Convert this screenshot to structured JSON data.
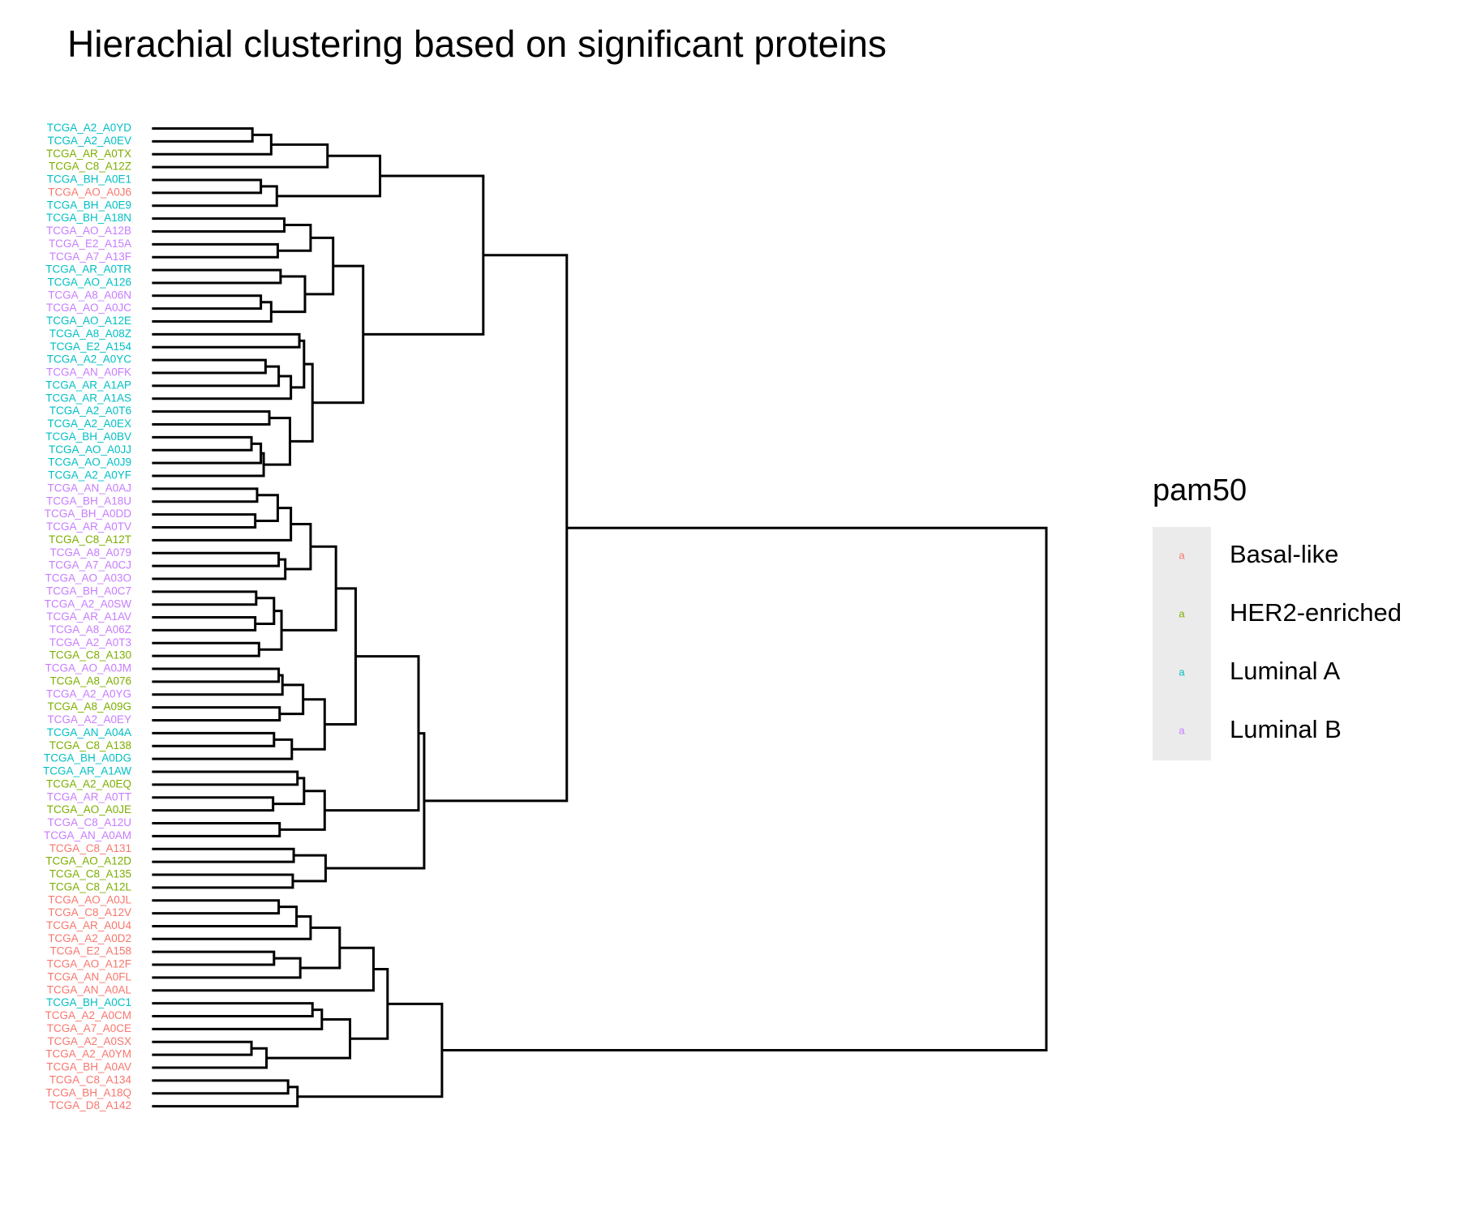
{
  "chart_data": {
    "type": "dendrogram",
    "title": "Hierachial clustering based on significant proteins",
    "labels": [
      "TCGA_A2_A0YD",
      "TCGA_A2_A0EV",
      "TCGA_AR_A0TX",
      "TCGA_C8_A12Z",
      "TCGA_BH_A0E1",
      "TCGA_AO_A0J6",
      "TCGA_BH_A0E9",
      "TCGA_BH_A18N",
      "TCGA_AO_A12B",
      "TCGA_E2_A15A",
      "TCGA_A7_A13F",
      "TCGA_AR_A0TR",
      "TCGA_AO_A126",
      "TCGA_A8_A06N",
      "TCGA_AO_A0JC",
      "TCGA_AO_A12E",
      "TCGA_A8_A08Z",
      "TCGA_E2_A154",
      "TCGA_A2_A0YC",
      "TCGA_AN_A0FK",
      "TCGA_AR_A1AP",
      "TCGA_AR_A1AS",
      "TCGA_A2_A0T6",
      "TCGA_A2_A0EX",
      "TCGA_BH_A0BV",
      "TCGA_AO_A0JJ",
      "TCGA_AO_A0J9",
      "TCGA_A2_A0YF",
      "TCGA_AN_A0AJ",
      "TCGA_BH_A18U",
      "TCGA_BH_A0DD",
      "TCGA_AR_A0TV",
      "TCGA_C8_A12T",
      "TCGA_A8_A079",
      "TCGA_A7_A0CJ",
      "TCGA_AO_A03O",
      "TCGA_BH_A0C7",
      "TCGA_A2_A0SW",
      "TCGA_AR_A1AV",
      "TCGA_A8_A06Z",
      "TCGA_A2_A0T3",
      "TCGA_C8_A130",
      "TCGA_AO_A0JM",
      "TCGA_A8_A076",
      "TCGA_A2_A0YG",
      "TCGA_A8_A09G",
      "TCGA_A2_A0EY",
      "TCGA_AN_A04A",
      "TCGA_C8_A138",
      "TCGA_BH_A0DG",
      "TCGA_AR_A1AW",
      "TCGA_A2_A0EQ",
      "TCGA_AR_A0TT",
      "TCGA_AO_A0JE",
      "TCGA_C8_A12U",
      "TCGA_AN_A0AM",
      "TCGA_C8_A131",
      "TCGA_AO_A12D",
      "TCGA_C8_A135",
      "TCGA_C8_A12L",
      "TCGA_AO_A0JL",
      "TCGA_C8_A12V",
      "TCGA_AR_A0U4",
      "TCGA_A2_A0D2",
      "TCGA_E2_A158",
      "TCGA_AO_A12F",
      "TCGA_AN_A0FL",
      "TCGA_AN_A0AL",
      "TCGA_BH_A0C1",
      "TCGA_A2_A0CM",
      "TCGA_A7_A0CE",
      "TCGA_A2_A0SX",
      "TCGA_A2_A0YM",
      "TCGA_BH_A0AV",
      "TCGA_C8_A134",
      "TCGA_BH_A18Q",
      "TCGA_D8_A142"
    ],
    "groups": [
      "Luminal A",
      "Luminal A",
      "HER2-enriched",
      "HER2-enriched",
      "Luminal A",
      "Basal-like",
      "Luminal A",
      "Luminal A",
      "Luminal B",
      "Luminal B",
      "Luminal B",
      "Luminal A",
      "Luminal A",
      "Luminal B",
      "Luminal B",
      "Luminal A",
      "Luminal A",
      "Luminal A",
      "Luminal A",
      "Luminal B",
      "Luminal A",
      "Luminal A",
      "Luminal A",
      "Luminal A",
      "Luminal A",
      "Luminal A",
      "Luminal A",
      "Luminal A",
      "Luminal B",
      "Luminal B",
      "Luminal B",
      "Luminal B",
      "HER2-enriched",
      "Luminal B",
      "Luminal B",
      "Luminal B",
      "Luminal B",
      "Luminal B",
      "Luminal B",
      "Luminal B",
      "Luminal B",
      "HER2-enriched",
      "Luminal B",
      "HER2-enriched",
      "Luminal B",
      "HER2-enriched",
      "Luminal B",
      "Luminal A",
      "HER2-enriched",
      "Luminal A",
      "Luminal A",
      "HER2-enriched",
      "Luminal B",
      "HER2-enriched",
      "Luminal B",
      "Luminal B",
      "Basal-like",
      "HER2-enriched",
      "HER2-enriched",
      "HER2-enriched",
      "Basal-like",
      "Basal-like",
      "Basal-like",
      "Basal-like",
      "Basal-like",
      "Basal-like",
      "Basal-like",
      "Basal-like",
      "Luminal A",
      "Basal-like",
      "Basal-like",
      "Basal-like",
      "Basal-like",
      "Basal-like",
      "Basal-like",
      "Basal-like",
      "Basal-like"
    ],
    "merges": [
      {
        "pair": [
          -1,
          -2
        ],
        "height": 107
      },
      {
        "pair": [
          1,
          -3
        ],
        "height": 127
      },
      {
        "pair": [
          2,
          -4
        ],
        "height": 187
      },
      {
        "pair": [
          -5,
          -6
        ],
        "height": 116
      },
      {
        "pair": [
          4,
          -7
        ],
        "height": 133
      },
      {
        "pair": [
          3,
          5
        ],
        "height": 243
      },
      {
        "pair": [
          -8,
          -9
        ],
        "height": 141
      },
      {
        "pair": [
          -10,
          -11
        ],
        "height": 134
      },
      {
        "pair": [
          7,
          8
        ],
        "height": 169
      },
      {
        "pair": [
          -12,
          -13
        ],
        "height": 137
      },
      {
        "pair": [
          -14,
          -15
        ],
        "height": 116
      },
      {
        "pair": [
          11,
          -16
        ],
        "height": 127
      },
      {
        "pair": [
          10,
          12
        ],
        "height": 163
      },
      {
        "pair": [
          9,
          13
        ],
        "height": 193
      },
      {
        "pair": [
          -17,
          -18
        ],
        "height": 157
      },
      {
        "pair": [
          -19,
          -20
        ],
        "height": 121
      },
      {
        "pair": [
          16,
          -21
        ],
        "height": 135
      },
      {
        "pair": [
          17,
          -22
        ],
        "height": 148
      },
      {
        "pair": [
          15,
          18
        ],
        "height": 162
      },
      {
        "pair": [
          -23,
          -24
        ],
        "height": 125
      },
      {
        "pair": [
          -25,
          -26
        ],
        "height": 106
      },
      {
        "pair": [
          21,
          -27
        ],
        "height": 116
      },
      {
        "pair": [
          22,
          -28
        ],
        "height": 119
      },
      {
        "pair": [
          20,
          23
        ],
        "height": 147
      },
      {
        "pair": [
          19,
          24
        ],
        "height": 171
      },
      {
        "pair": [
          14,
          25
        ],
        "height": 225
      },
      {
        "pair": [
          6,
          26
        ],
        "height": 353
      },
      {
        "pair": [
          -29,
          -30
        ],
        "height": 112
      },
      {
        "pair": [
          -31,
          -32
        ],
        "height": 110
      },
      {
        "pair": [
          28,
          29
        ],
        "height": 134
      },
      {
        "pair": [
          30,
          -33
        ],
        "height": 148
      },
      {
        "pair": [
          -34,
          -35
        ],
        "height": 135
      },
      {
        "pair": [
          32,
          -36
        ],
        "height": 142
      },
      {
        "pair": [
          31,
          33
        ],
        "height": 169
      },
      {
        "pair": [
          -37,
          -38
        ],
        "height": 111
      },
      {
        "pair": [
          -39,
          -40
        ],
        "height": 110
      },
      {
        "pair": [
          35,
          36
        ],
        "height": 130
      },
      {
        "pair": [
          -41,
          -42
        ],
        "height": 114
      },
      {
        "pair": [
          37,
          38
        ],
        "height": 138
      },
      {
        "pair": [
          34,
          39
        ],
        "height": 196
      },
      {
        "pair": [
          -43,
          -44
        ],
        "height": 135
      },
      {
        "pair": [
          41,
          -45
        ],
        "height": 139
      },
      {
        "pair": [
          -46,
          -47
        ],
        "height": 136
      },
      {
        "pair": [
          42,
          43
        ],
        "height": 161
      },
      {
        "pair": [
          -48,
          -49
        ],
        "height": 130
      },
      {
        "pair": [
          45,
          -50
        ],
        "height": 149
      },
      {
        "pair": [
          44,
          46
        ],
        "height": 184
      },
      {
        "pair": [
          40,
          47
        ],
        "height": 217
      },
      {
        "pair": [
          -51,
          -52
        ],
        "height": 155
      },
      {
        "pair": [
          -53,
          -54
        ],
        "height": 129
      },
      {
        "pair": [
          49,
          50
        ],
        "height": 162
      },
      {
        "pair": [
          -55,
          -56
        ],
        "height": 136
      },
      {
        "pair": [
          51,
          52
        ],
        "height": 184
      },
      {
        "pair": [
          -57,
          -58
        ],
        "height": 151
      },
      {
        "pair": [
          -59,
          -60
        ],
        "height": 150
      },
      {
        "pair": [
          54,
          55
        ],
        "height": 185
      },
      {
        "pair": [
          48,
          53
        ],
        "height": 284
      },
      {
        "pair": [
          57,
          56
        ],
        "height": 290
      },
      {
        "pair": [
          -61,
          -62
        ],
        "height": 135
      },
      {
        "pair": [
          59,
          -63
        ],
        "height": 154
      },
      {
        "pair": [
          60,
          -64
        ],
        "height": 169
      },
      {
        "pair": [
          -65,
          -66
        ],
        "height": 130
      },
      {
        "pair": [
          62,
          -67
        ],
        "height": 158
      },
      {
        "pair": [
          61,
          63
        ],
        "height": 200
      },
      {
        "pair": [
          64,
          -68
        ],
        "height": 236
      },
      {
        "pair": [
          -69,
          -70
        ],
        "height": 171
      },
      {
        "pair": [
          66,
          -71
        ],
        "height": 181
      },
      {
        "pair": [
          -72,
          -73
        ],
        "height": 106
      },
      {
        "pair": [
          68,
          -74
        ],
        "height": 122
      },
      {
        "pair": [
          67,
          69
        ],
        "height": 211
      },
      {
        "pair": [
          65,
          70
        ],
        "height": 251
      },
      {
        "pair": [
          -75,
          -76
        ],
        "height": 145
      },
      {
        "pair": [
          72,
          -77
        ],
        "height": 155
      },
      {
        "pair": [
          71,
          73
        ],
        "height": 309
      },
      {
        "pair": [
          27,
          58
        ],
        "height": 442
      },
      {
        "pair": [
          75,
          74
        ],
        "height": 953
      }
    ],
    "legend": {
      "title": "pam50",
      "key_glyph": "a",
      "position": "right",
      "entries": [
        {
          "name": "Basal-like",
          "color": "#F8766D"
        },
        {
          "name": "HER2-enriched",
          "color": "#7CAE00"
        },
        {
          "name": "Luminal A",
          "color": "#00BFC4"
        },
        {
          "name": "Luminal B",
          "color": "#C77CFF"
        }
      ]
    }
  }
}
